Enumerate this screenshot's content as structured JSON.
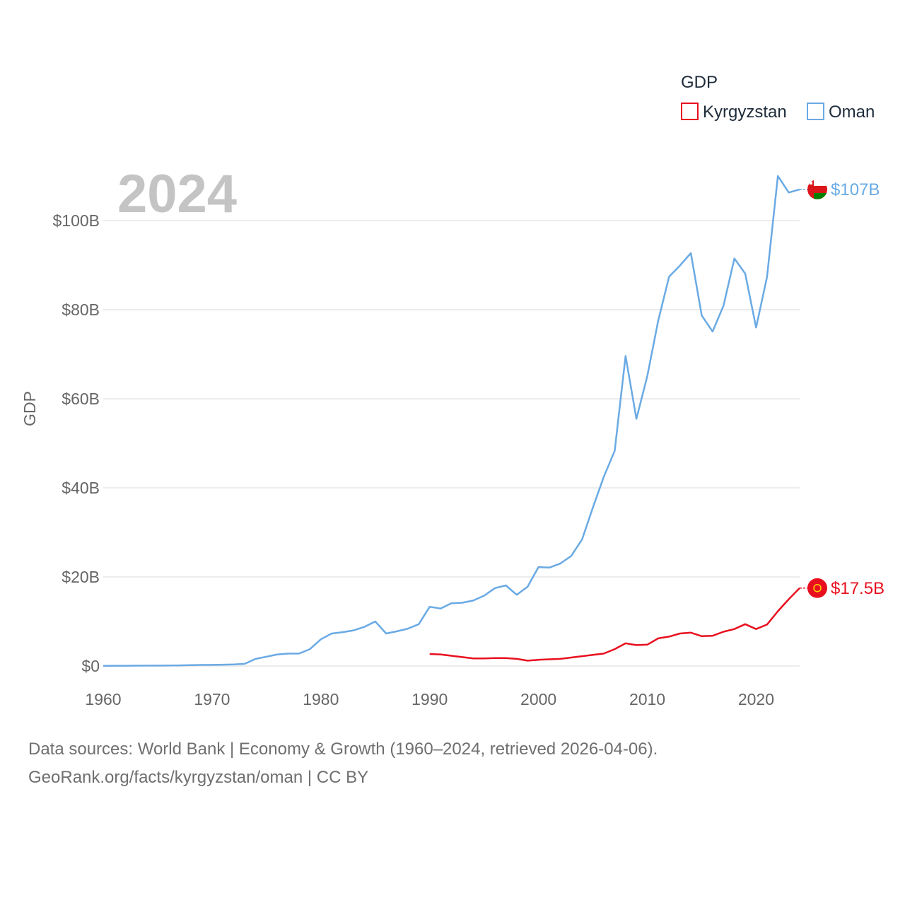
{
  "chart_data": {
    "type": "line",
    "title": "",
    "year_label": "2024",
    "xlabel": "",
    "ylabel": "GDP",
    "xlim": [
      1960,
      2024
    ],
    "ylim": [
      0,
      110
    ],
    "x_ticks": [
      1960,
      1970,
      1980,
      1990,
      2000,
      2010,
      2020
    ],
    "y_ticks": [
      {
        "value": 0,
        "label": "$0"
      },
      {
        "value": 20,
        "label": "$20B"
      },
      {
        "value": 40,
        "label": "$40B"
      },
      {
        "value": 60,
        "label": "$60B"
      },
      {
        "value": 80,
        "label": "$80B"
      },
      {
        "value": 100,
        "label": "$100B"
      }
    ],
    "value_unit": "billion USD",
    "legend": {
      "title": "GDP",
      "position": "top-right"
    },
    "series": [
      {
        "name": "Kyrgyzstan",
        "color": "#e8101f",
        "end_label": "$17.5B",
        "end_value": 17.5,
        "x": [
          1990,
          1991,
          1992,
          1993,
          1994,
          1995,
          1996,
          1997,
          1998,
          1999,
          2000,
          2001,
          2002,
          2003,
          2004,
          2005,
          2006,
          2007,
          2008,
          2009,
          2010,
          2011,
          2012,
          2013,
          2014,
          2015,
          2016,
          2017,
          2018,
          2019,
          2020,
          2021,
          2022,
          2023,
          2024
        ],
        "values": [
          2.7,
          2.6,
          2.3,
          2.0,
          1.7,
          1.7,
          1.8,
          1.8,
          1.6,
          1.2,
          1.4,
          1.5,
          1.6,
          1.9,
          2.2,
          2.5,
          2.8,
          3.8,
          5.1,
          4.7,
          4.8,
          6.2,
          6.6,
          7.3,
          7.5,
          6.7,
          6.8,
          7.7,
          8.3,
          9.4,
          8.3,
          9.3,
          12.3,
          15.0,
          17.5
        ]
      },
      {
        "name": "Oman",
        "color": "#6aaae4",
        "end_label": "$107B",
        "end_value": 107,
        "x": [
          1960,
          1961,
          1962,
          1963,
          1964,
          1965,
          1966,
          1967,
          1968,
          1969,
          1970,
          1971,
          1972,
          1973,
          1974,
          1975,
          1976,
          1977,
          1978,
          1979,
          1980,
          1981,
          1982,
          1983,
          1984,
          1985,
          1986,
          1987,
          1988,
          1989,
          1990,
          1991,
          1992,
          1993,
          1994,
          1995,
          1996,
          1997,
          1998,
          1999,
          2000,
          2001,
          2002,
          2003,
          2004,
          2005,
          2006,
          2007,
          2008,
          2009,
          2010,
          2011,
          2012,
          2013,
          2014,
          2015,
          2016,
          2017,
          2018,
          2019,
          2020,
          2021,
          2022,
          2023,
          2024
        ],
        "values": [
          0.05,
          0.06,
          0.07,
          0.08,
          0.09,
          0.1,
          0.12,
          0.15,
          0.2,
          0.24,
          0.26,
          0.3,
          0.35,
          0.5,
          1.6,
          2.1,
          2.6,
          2.8,
          2.8,
          3.8,
          6.0,
          7.3,
          7.6,
          8.0,
          8.8,
          10.0,
          7.3,
          7.8,
          8.4,
          9.4,
          13.3,
          12.9,
          14.1,
          14.2,
          14.7,
          15.8,
          17.5,
          18.1,
          16.0,
          17.8,
          22.2,
          22.1,
          23.0,
          24.7,
          28.4,
          35.6,
          42.5,
          48.3,
          69.6,
          55.5,
          65.1,
          77.5,
          87.4,
          89.9,
          92.7,
          78.7,
          75.1,
          80.9,
          91.5,
          88.1,
          76.0,
          87.3,
          110.0,
          106.3,
          107.0
        ]
      }
    ]
  },
  "footer": {
    "line1": "Data sources: World Bank | Economy & Growth (1960–2024, retrieved 2026-04-06).",
    "line2": "GeoRank.org/facts/kyrgyzstan/oman | CC BY"
  }
}
